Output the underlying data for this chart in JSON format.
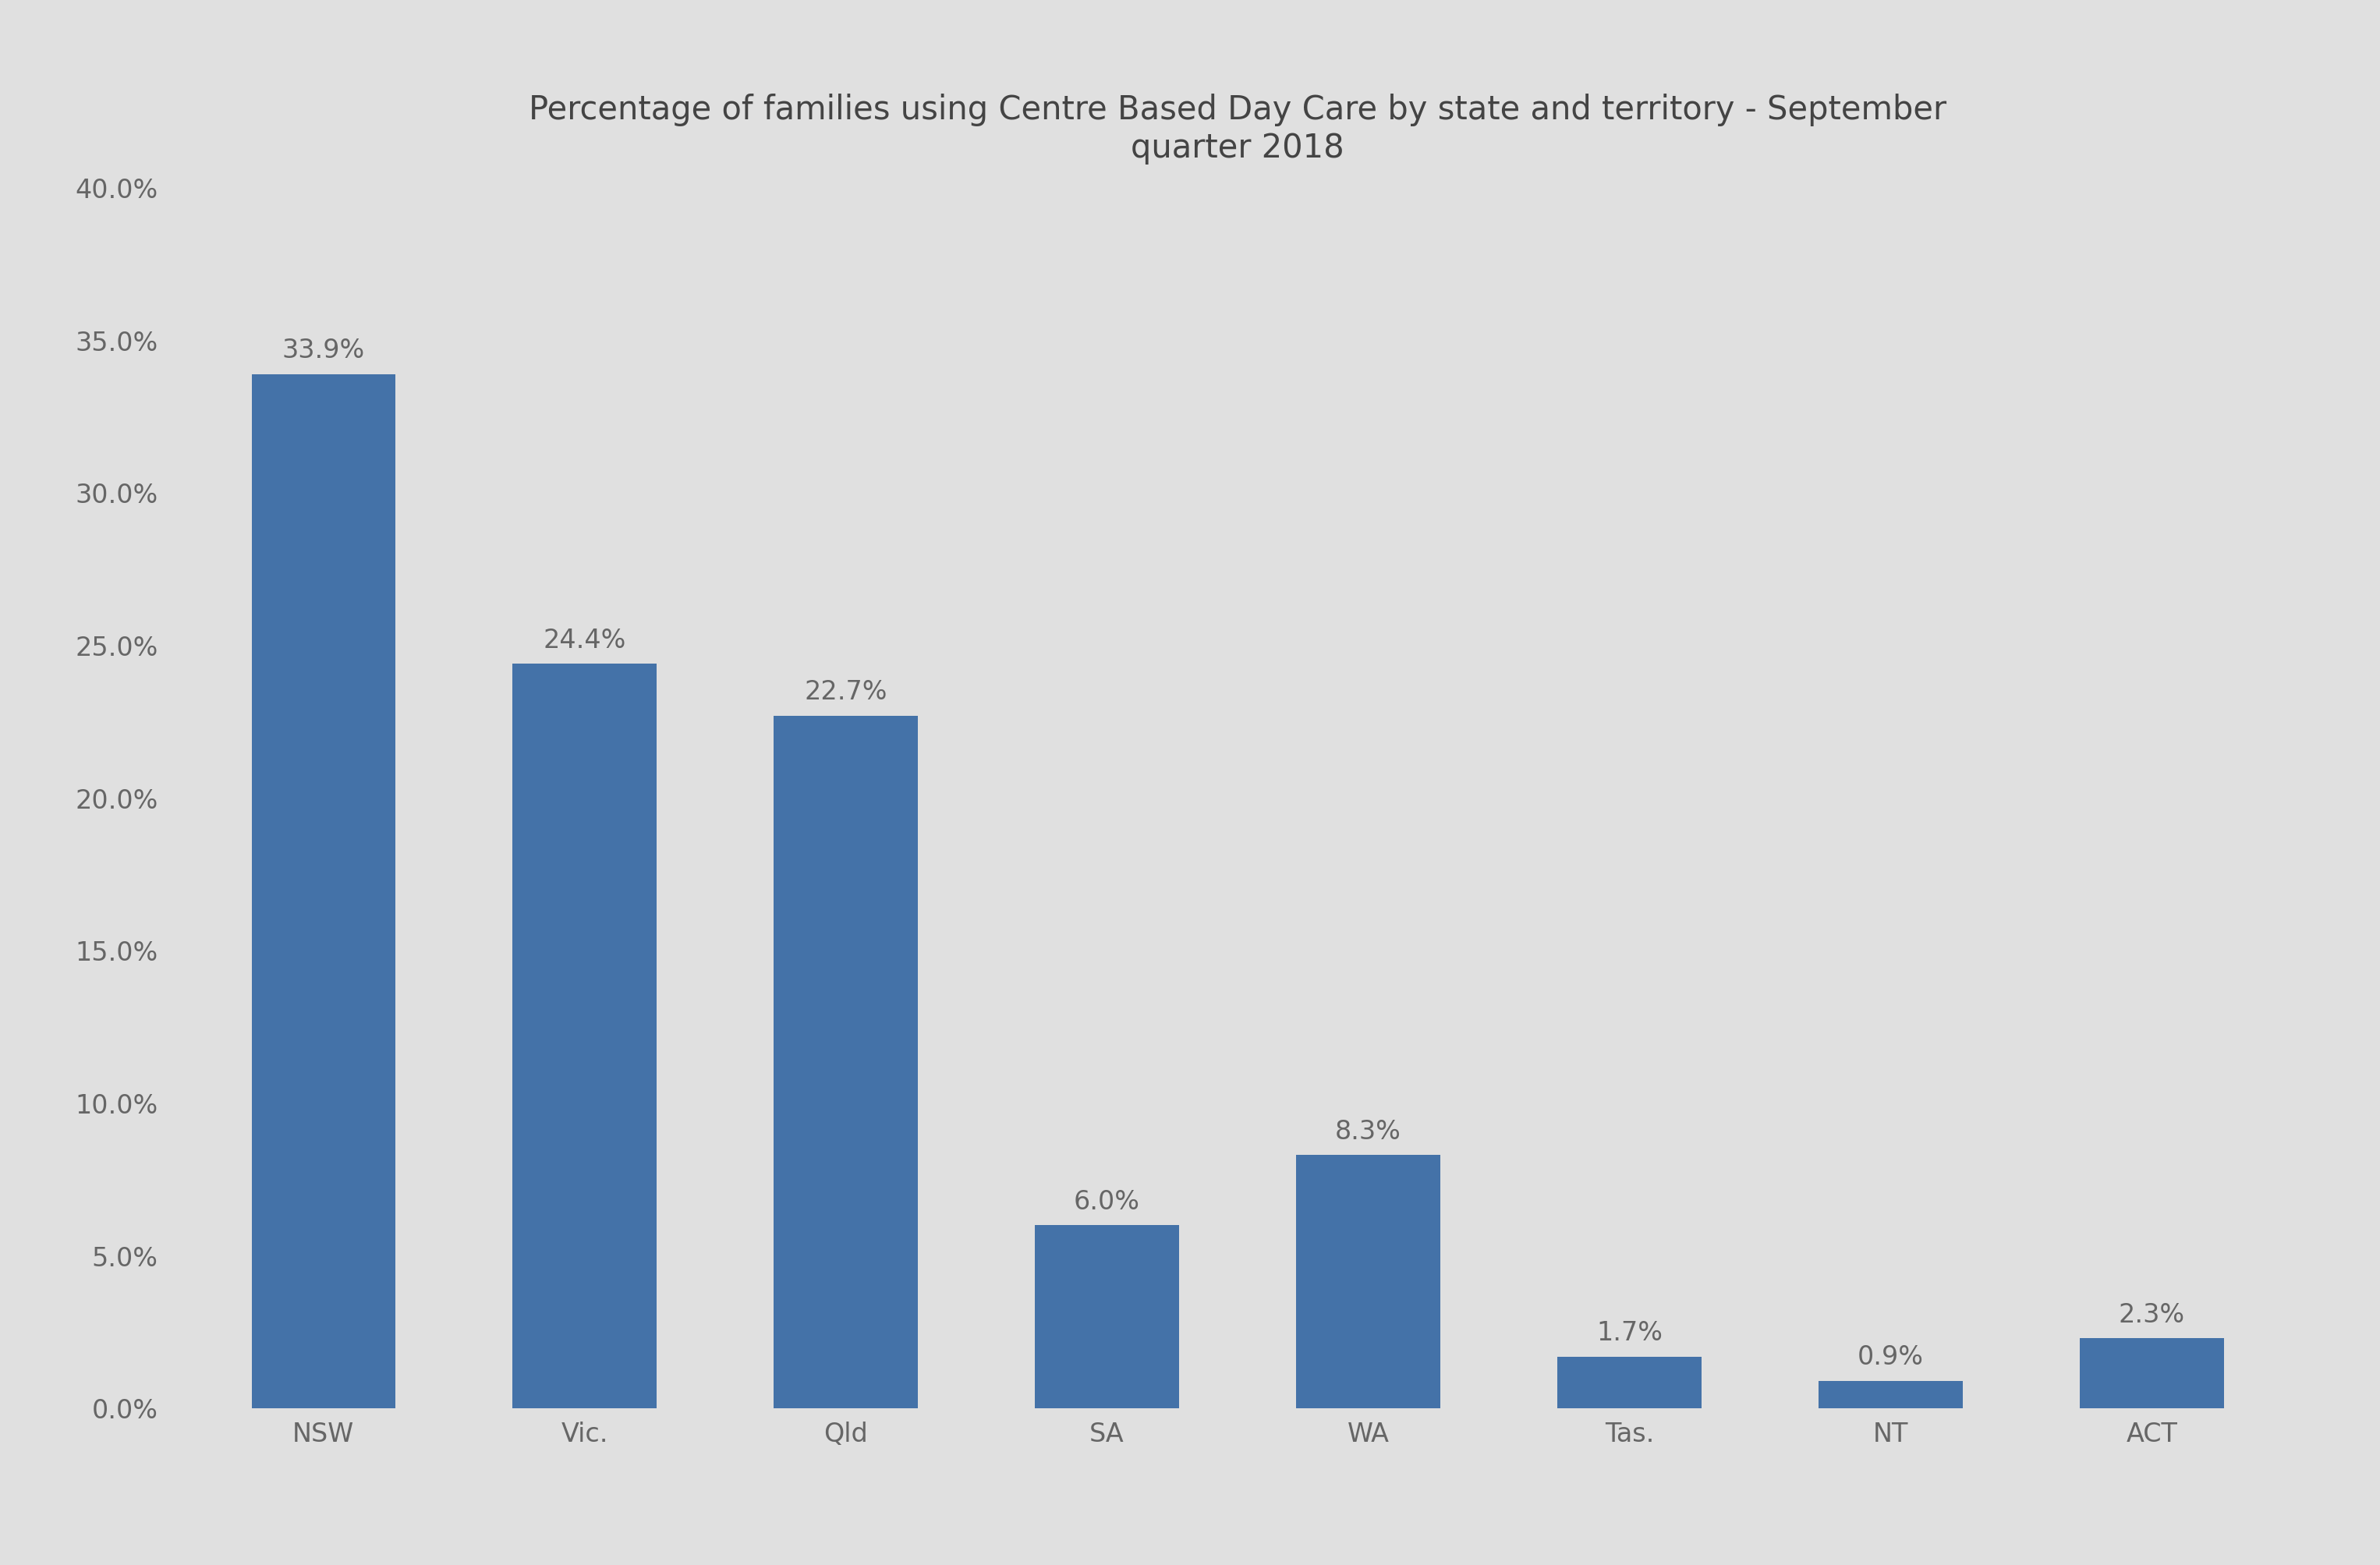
{
  "title": "Percentage of families using Centre Based Day Care by state and territory - September\nquarter 2018",
  "categories": [
    "NSW",
    "Vic.",
    "Qld",
    "SA",
    "WA",
    "Tas.",
    "NT",
    "ACT"
  ],
  "values": [
    33.9,
    24.4,
    22.7,
    6.0,
    8.3,
    1.7,
    0.9,
    2.3
  ],
  "labels": [
    "33.9%",
    "24.4%",
    "22.7%",
    "6.0%",
    "8.3%",
    "1.7%",
    "0.9%",
    "2.3%"
  ],
  "bar_color": "#4472a8",
  "background_color": "#e0e0e0",
  "ylim": [
    0,
    40
  ],
  "yticks": [
    0,
    5,
    10,
    15,
    20,
    25,
    30,
    35,
    40
  ],
  "ytick_labels": [
    "0.0%",
    "5.0%",
    "10.0%",
    "15.0%",
    "20.0%",
    "25.0%",
    "30.0%",
    "35.0%",
    "40.0%"
  ],
  "title_fontsize": 30,
  "tick_fontsize": 24,
  "label_fontsize": 24,
  "bar_width": 0.55
}
